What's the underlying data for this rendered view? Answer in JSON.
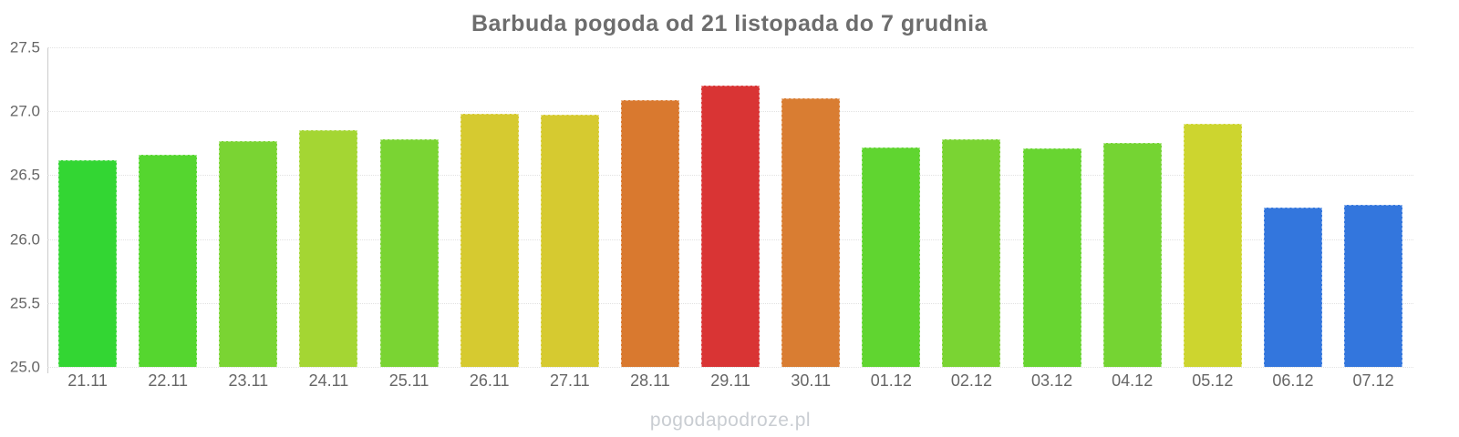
{
  "title": "Barbuda pogoda od 21 listopada do 7 grudnia",
  "watermark": "pogodapodroze.pl",
  "chart_data": {
    "type": "bar",
    "title": "Barbuda pogoda od 21 listopada do 7 grudnia",
    "categories": [
      "21.11",
      "22.11",
      "23.11",
      "24.11",
      "25.11",
      "26.11",
      "27.11",
      "28.11",
      "29.11",
      "30.11",
      "01.12",
      "02.12",
      "03.12",
      "04.12",
      "05.12",
      "06.12",
      "07.12"
    ],
    "values": [
      26.62,
      26.66,
      26.77,
      26.85,
      26.78,
      26.98,
      26.97,
      27.09,
      27.2,
      27.1,
      26.72,
      26.78,
      26.71,
      26.75,
      26.9,
      26.25,
      26.27
    ],
    "bar_colors": [
      "#33d633",
      "#55d62f",
      "#7ad433",
      "#a4d633",
      "#7ad433",
      "#d6ca30",
      "#d6ca30",
      "#d9792f",
      "#d93434",
      "#d97d32",
      "#60d530",
      "#7ad433",
      "#68d531",
      "#75d433",
      "#cdd52f",
      "#3376dd",
      "#3376dd"
    ],
    "unit": "°C",
    "xlabel": "",
    "ylabel": "",
    "ylim": [
      25.0,
      27.5
    ],
    "yticks": [
      25.0,
      25.5,
      26.0,
      26.5,
      27.0,
      27.5
    ],
    "ytick_labels": [
      "25.0",
      "25.5",
      "26.0",
      "26.5",
      "27.0",
      "27.5"
    ],
    "grid": "horizontal-dotted",
    "legend": "none"
  },
  "colors": {
    "title_text": "#6d6d6d",
    "axis_text": "#666666",
    "axis_line": "#cccccc",
    "gridline": "#e2e2e2",
    "watermark_text": "#c9cdd2",
    "background": "#ffffff"
  }
}
